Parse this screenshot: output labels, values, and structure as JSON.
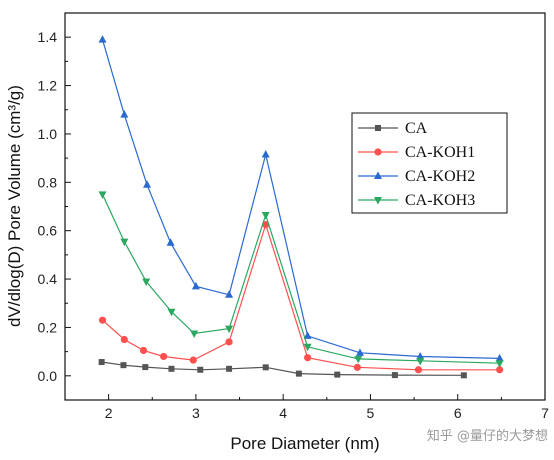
{
  "chart_data": {
    "type": "line",
    "title": "",
    "xlabel": "Pore Diameter (nm)",
    "ylabel": "dV/dlog(D) Pore Volume (cm³/g)",
    "xlim": [
      1.5,
      7
    ],
    "ylim": [
      -0.1,
      1.5
    ],
    "xticks": [
      "2",
      "3",
      "4",
      "5",
      "6",
      "7"
    ],
    "yticks": [
      "0.0",
      "0.2",
      "0.4",
      "0.6",
      "0.8",
      "1.0",
      "1.2",
      "1.4"
    ],
    "grid": false,
    "legend_position": "right",
    "series": [
      {
        "name": "CA",
        "color": "#555555",
        "marker": "square",
        "points": [
          [
            1.92,
            0.057
          ],
          [
            2.17,
            0.044
          ],
          [
            2.42,
            0.036
          ],
          [
            2.72,
            0.029
          ],
          [
            3.05,
            0.025
          ],
          [
            3.38,
            0.029
          ],
          [
            3.8,
            0.035
          ],
          [
            4.18,
            0.009
          ],
          [
            4.62,
            0.005
          ],
          [
            5.28,
            0.003
          ],
          [
            6.07,
            0.002
          ]
        ]
      },
      {
        "name": "CA-KOH1",
        "color": "#ff5050",
        "marker": "circle",
        "points": [
          [
            1.93,
            0.23
          ],
          [
            2.18,
            0.15
          ],
          [
            2.4,
            0.105
          ],
          [
            2.63,
            0.08
          ],
          [
            2.97,
            0.065
          ],
          [
            3.38,
            0.14
          ],
          [
            3.8,
            0.625
          ],
          [
            4.28,
            0.075
          ],
          [
            4.85,
            0.035
          ],
          [
            5.55,
            0.025
          ],
          [
            6.48,
            0.025
          ]
        ]
      },
      {
        "name": "CA-KOH2",
        "color": "#2a6ad0",
        "marker": "triangle-up",
        "points": [
          [
            1.93,
            1.39
          ],
          [
            2.18,
            1.08
          ],
          [
            2.44,
            0.79
          ],
          [
            2.71,
            0.55
          ],
          [
            3.0,
            0.37
          ],
          [
            3.38,
            0.335
          ],
          [
            3.8,
            0.915
          ],
          [
            4.28,
            0.165
          ],
          [
            4.88,
            0.095
          ],
          [
            5.57,
            0.08
          ],
          [
            6.48,
            0.072
          ]
        ]
      },
      {
        "name": "CA-KOH3",
        "color": "#2aa860",
        "marker": "triangle-down",
        "points": [
          [
            1.93,
            0.75
          ],
          [
            2.18,
            0.555
          ],
          [
            2.43,
            0.39
          ],
          [
            2.72,
            0.265
          ],
          [
            2.98,
            0.175
          ],
          [
            3.38,
            0.195
          ],
          [
            3.8,
            0.665
          ],
          [
            4.28,
            0.12
          ],
          [
            4.86,
            0.07
          ],
          [
            5.57,
            0.062
          ],
          [
            6.48,
            0.052
          ]
        ]
      }
    ]
  },
  "watermark": "知乎 @量仔的大梦想"
}
